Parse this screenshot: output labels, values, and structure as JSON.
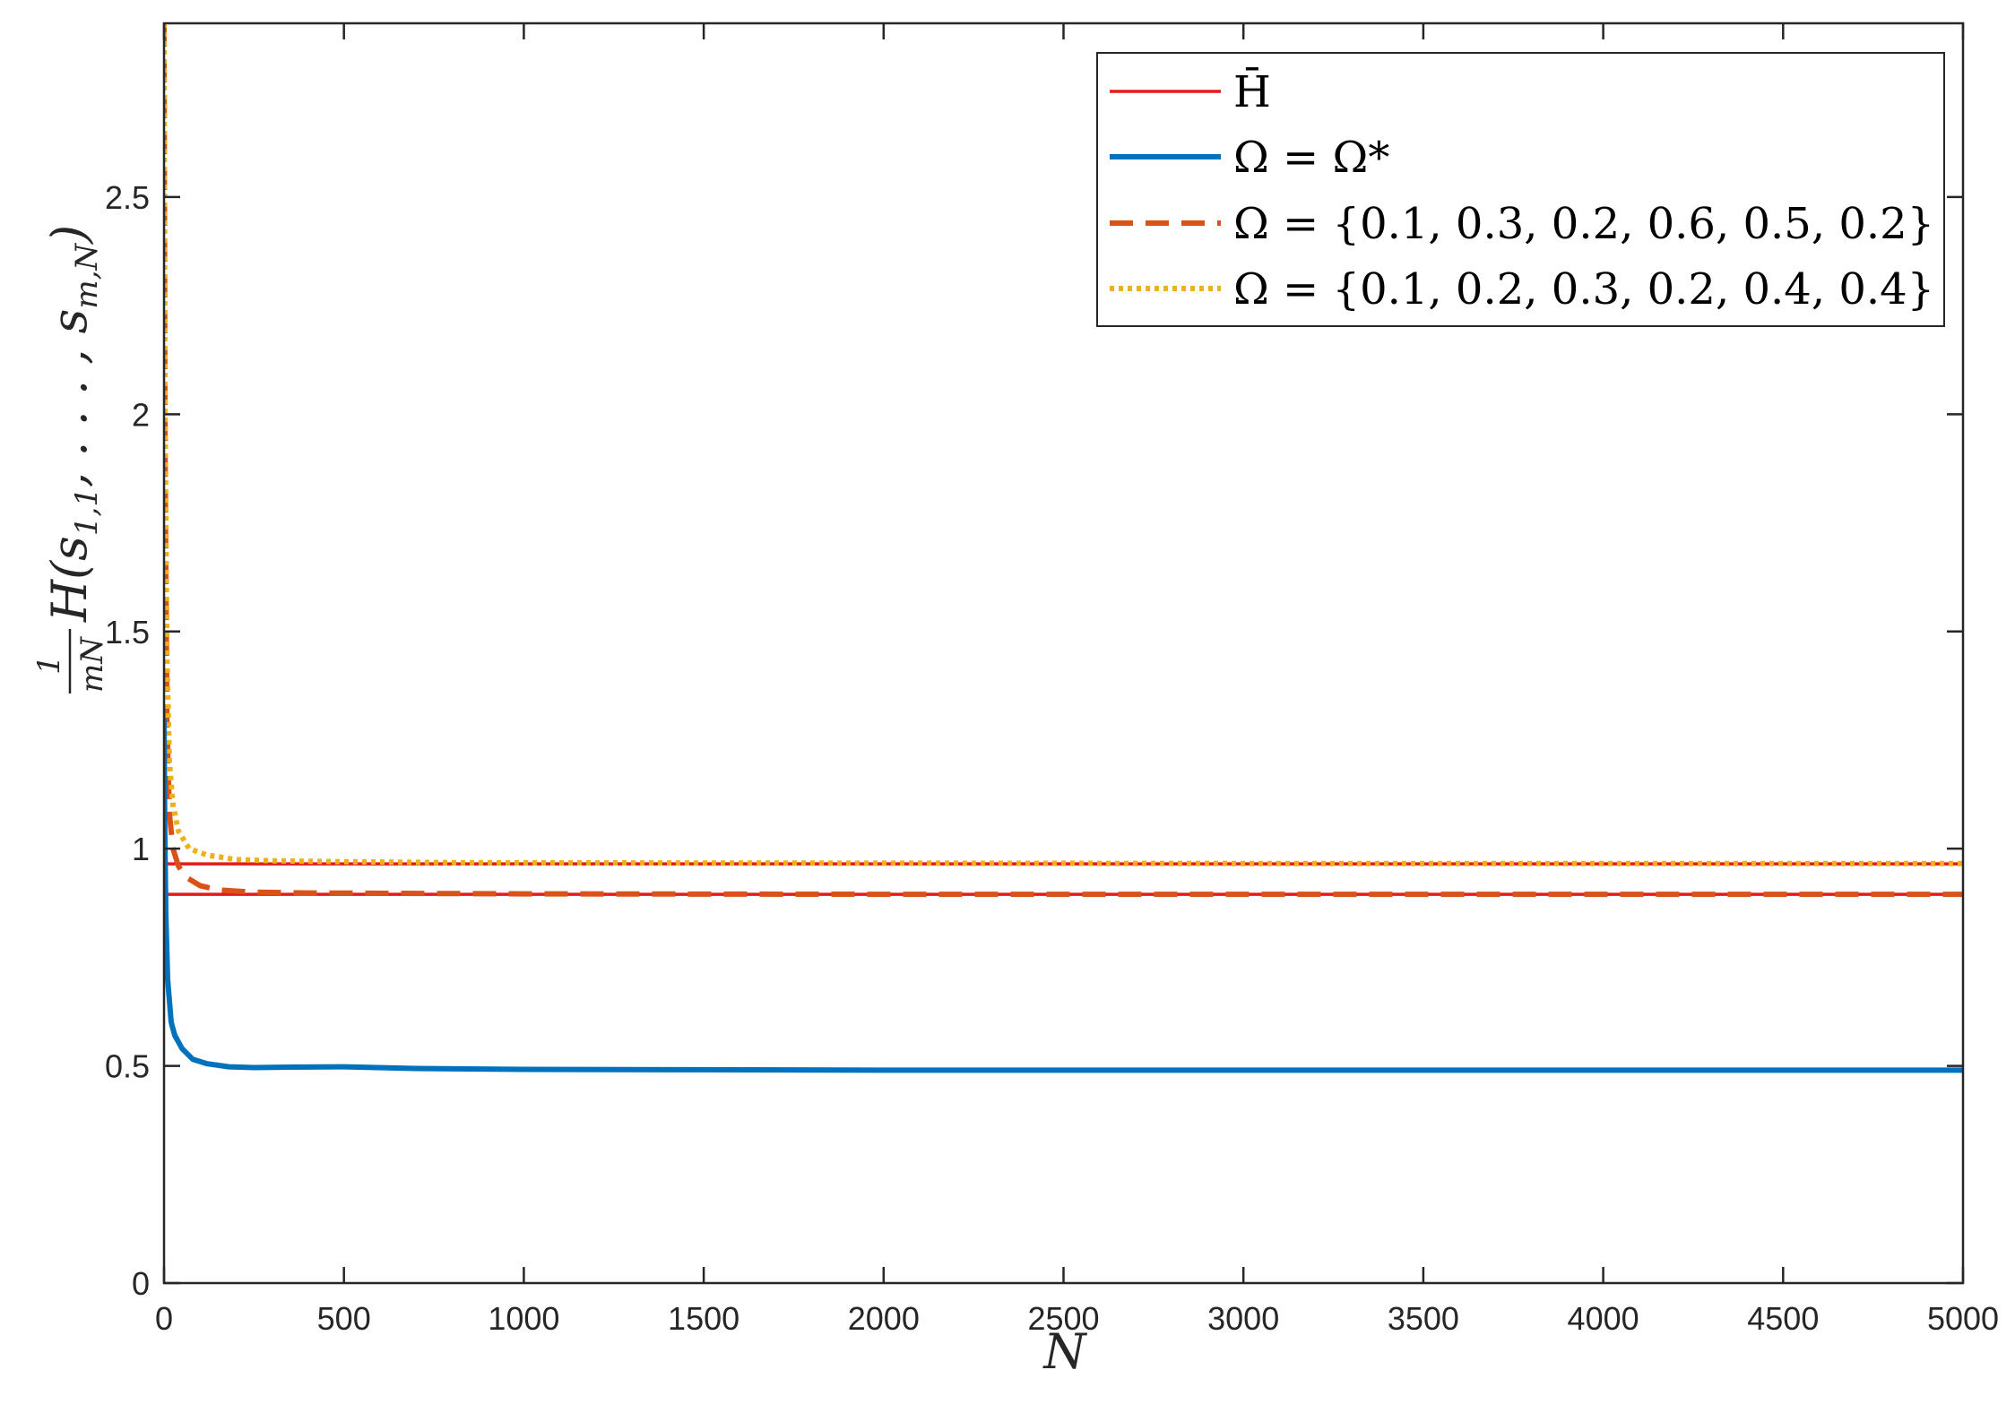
{
  "chart_data": {
    "type": "line",
    "xlabel": "N",
    "ylabel": {
      "fraction_numerator": "1",
      "fraction_denominator": "mN",
      "expression": "H(s",
      "sub_first": "1,1",
      "middle": ", . . . , s",
      "sub_last": "m,N",
      "close": ")"
    },
    "xlim": [
      0,
      5000
    ],
    "ylim": [
      0,
      2.9
    ],
    "x_ticks": [
      "0",
      "500",
      "1000",
      "1500",
      "2000",
      "2500",
      "3000",
      "3500",
      "4000",
      "4500",
      "5000"
    ],
    "y_ticks": [
      "0",
      "0.5",
      "1",
      "1.5",
      "2",
      "2.5"
    ],
    "grid": false,
    "legend_position": "top-right",
    "legend": [
      {
        "text": "H̄",
        "color": "#e41a1c",
        "style": "solid"
      },
      {
        "text": "Ω = Ω*",
        "color": "#0072bd",
        "style": "solid-thick"
      },
      {
        "text": "Ω = {0.1, 0.3, 0.2, 0.6, 0.5, 0.2}",
        "color": "#d95319",
        "style": "dashed"
      },
      {
        "text": "Ω = {0.1, 0.2, 0.3, 0.2, 0.4, 0.4}",
        "color": "#edb120",
        "style": "dotted"
      }
    ],
    "series": [
      {
        "key": "hbar_a",
        "color": "#e41a1c",
        "style": "solid",
        "x": [
          0,
          5000
        ],
        "y": [
          0.965,
          0.965
        ]
      },
      {
        "key": "hbar_b",
        "color": "#e41a1c",
        "style": "solid",
        "x": [
          0,
          5000
        ],
        "y": [
          0.895,
          0.895
        ]
      },
      {
        "key": "omega_star",
        "color": "#0072bd",
        "style": "solid-thick",
        "x": [
          0,
          2,
          5,
          10,
          20,
          30,
          50,
          80,
          120,
          180,
          250,
          350,
          500,
          700,
          1000,
          1500,
          2000,
          3000,
          4000,
          5000
        ],
        "y": [
          1.3,
          1.05,
          0.85,
          0.7,
          0.6,
          0.57,
          0.54,
          0.515,
          0.505,
          0.498,
          0.496,
          0.497,
          0.498,
          0.494,
          0.492,
          0.491,
          0.49,
          0.49,
          0.49,
          0.49
        ]
      },
      {
        "key": "omega_a",
        "color": "#d95319",
        "style": "dashed",
        "x": [
          0,
          3,
          8,
          15,
          25,
          40,
          60,
          100,
          150,
          250,
          400,
          700,
          1000,
          2000,
          3000,
          5000
        ],
        "y": [
          2.9,
          1.9,
          1.3,
          1.08,
          1.0,
          0.96,
          0.935,
          0.915,
          0.905,
          0.9,
          0.898,
          0.897,
          0.896,
          0.895,
          0.895,
          0.895
        ]
      },
      {
        "key": "omega_b",
        "color": "#edb120",
        "style": "dotted",
        "x": [
          0,
          3,
          8,
          15,
          25,
          40,
          70,
          120,
          200,
          300,
          500,
          800,
          1500,
          3000,
          5000
        ],
        "y": [
          2.9,
          2.0,
          1.45,
          1.2,
          1.1,
          1.04,
          1.0,
          0.985,
          0.975,
          0.972,
          0.97,
          0.968,
          0.967,
          0.966,
          0.966
        ]
      }
    ]
  }
}
